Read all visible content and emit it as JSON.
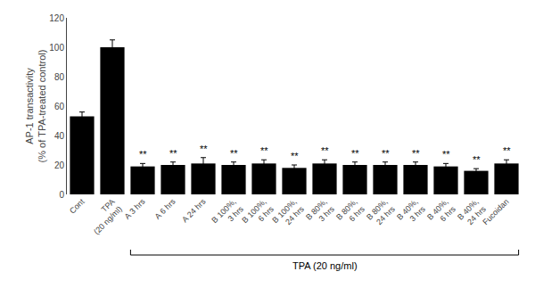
{
  "chart_data": {
    "type": "bar",
    "categories": [
      "Cont",
      "TPA\n(20 ng/ml)",
      "A 3 hrs",
      "A 6 hrs",
      "A 24 hrs",
      "B 100%,\n3 hrs",
      "B 100%,\n6 hrs",
      "B 100%,\n24 hrs",
      "B 80%,\n3 hrs",
      "B 80%,\n6 hrs",
      "B 80%,\n24 hrs",
      "B 40%,\n3 hrs",
      "B 40%,\n6 hrs",
      "B 40%,\n24 hrs",
      "Fucoidan"
    ],
    "values": [
      53,
      100,
      19,
      20,
      21,
      20,
      21,
      18,
      21,
      20,
      20,
      20,
      19,
      16,
      21
    ],
    "errors": [
      3,
      5,
      2,
      2,
      4,
      2,
      2.5,
      2,
      2.5,
      2,
      2,
      2,
      2,
      1.5,
      2.5
    ],
    "color": "#000000",
    "ylabel": "AP-1 transactivity\n(% of TPA-treated control)",
    "ylim": [
      0,
      120
    ],
    "yticks": [
      0,
      20,
      40,
      60,
      80,
      100,
      120
    ],
    "grid": false,
    "annotations": [
      {
        "category": "A 3 hrs",
        "text": "**"
      },
      {
        "category": "A 6 hrs",
        "text": "**"
      },
      {
        "category": "A 24 hrs",
        "text": "**"
      },
      {
        "category": "B 100%,\n3 hrs",
        "text": "**"
      },
      {
        "category": "B 100%,\n6 hrs",
        "text": "**"
      },
      {
        "category": "B 100%,\n24 hrs",
        "text": "**"
      },
      {
        "category": "B 80%,\n3 hrs",
        "text": "**"
      },
      {
        "category": "B 80%,\n6 hrs",
        "text": "**"
      },
      {
        "category": "B 80%,\n24 hrs",
        "text": "**"
      },
      {
        "category": "B 40%,\n3 hrs",
        "text": "**"
      },
      {
        "category": "B 40%,\n6 hrs",
        "text": "**"
      },
      {
        "category": "B 40%,\n24 hrs",
        "text": "**"
      },
      {
        "category": "Fucoidan",
        "text": "**"
      },
      {
        "from": "A 3 hrs",
        "to": "Fucoidan",
        "text": "TPA (20 ng/ml)"
      }
    ]
  }
}
